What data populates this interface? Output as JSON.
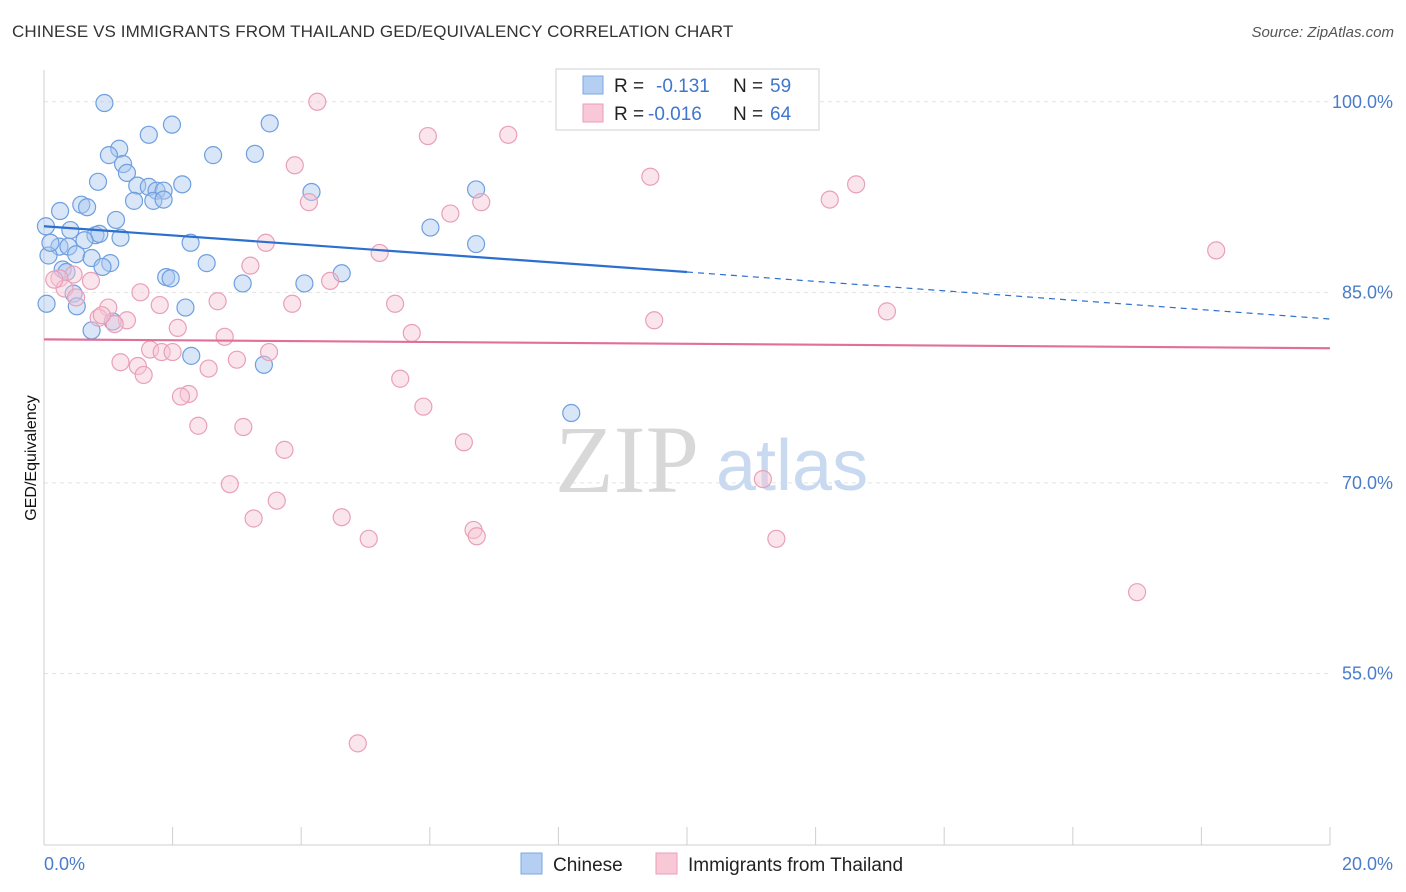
{
  "title": "CHINESE VS IMMIGRANTS FROM THAILAND GED/EQUIVALENCY CORRELATION CHART",
  "source": "Source: ZipAtlas.com",
  "watermark": {
    "zip": "ZIP",
    "atlas": "atlas"
  },
  "chart_data": {
    "type": "scatter",
    "ylabel": "GED/Equivalency",
    "xlim": [
      0,
      20
    ],
    "ylim": [
      41.5,
      102.5
    ],
    "x_tick_labels": [
      {
        "value": 0,
        "label": "0.0%"
      },
      {
        "value": 20,
        "label": "20.0%"
      }
    ],
    "y_tick_labels": [
      {
        "value": 100,
        "label": "100.0%"
      },
      {
        "value": 85,
        "label": "85.0%"
      },
      {
        "value": 70,
        "label": "70.0%"
      },
      {
        "value": 55,
        "label": "55.0%"
      }
    ],
    "legend": [
      {
        "r_label": "R =",
        "r_value": "-0.131",
        "n_label": "N =",
        "n_value": "59"
      },
      {
        "r_label": "R =",
        "r_value": "-0.016",
        "n_label": "N =",
        "n_value": "64"
      }
    ],
    "series": [
      {
        "name": "Chinese",
        "color": "#6f9fdf",
        "fill": "#a9c8f0",
        "trend": {
          "x": [
            0,
            10
          ],
          "y": [
            90.2,
            86.6
          ],
          "dashed_to_x": 20,
          "dashed_to_y": 82.9,
          "color": "#2c6fcf"
        },
        "points": [
          [
            0.94,
            99.9
          ],
          [
            1.99,
            98.2
          ],
          [
            3.51,
            98.3
          ],
          [
            1.63,
            97.4
          ],
          [
            1.17,
            96.3
          ],
          [
            1.01,
            95.8
          ],
          [
            2.63,
            95.8
          ],
          [
            3.28,
            95.9
          ],
          [
            1.23,
            95.1
          ],
          [
            1.29,
            94.4
          ],
          [
            0.84,
            93.7
          ],
          [
            1.45,
            93.4
          ],
          [
            1.63,
            93.3
          ],
          [
            2.15,
            93.5
          ],
          [
            1.75,
            93.0
          ],
          [
            1.86,
            93.0
          ],
          [
            4.16,
            92.9
          ],
          [
            6.72,
            93.1
          ],
          [
            1.4,
            92.2
          ],
          [
            1.7,
            92.2
          ],
          [
            1.86,
            92.3
          ],
          [
            0.58,
            91.9
          ],
          [
            0.67,
            91.7
          ],
          [
            0.25,
            91.4
          ],
          [
            1.12,
            90.7
          ],
          [
            0.03,
            90.2
          ],
          [
            0.41,
            89.9
          ],
          [
            0.8,
            89.5
          ],
          [
            0.86,
            89.6
          ],
          [
            1.19,
            89.3
          ],
          [
            0.63,
            89.1
          ],
          [
            6.01,
            90.1
          ],
          [
            2.28,
            88.9
          ],
          [
            0.24,
            88.6
          ],
          [
            0.38,
            88.6
          ],
          [
            0.5,
            88.0
          ],
          [
            0.74,
            87.7
          ],
          [
            0.07,
            87.9
          ],
          [
            1.03,
            87.3
          ],
          [
            2.53,
            87.3
          ],
          [
            0.29,
            86.8
          ],
          [
            0.91,
            87.0
          ],
          [
            0.35,
            86.6
          ],
          [
            1.9,
            86.2
          ],
          [
            1.97,
            86.1
          ],
          [
            3.09,
            85.7
          ],
          [
            4.05,
            85.7
          ],
          [
            4.63,
            86.5
          ],
          [
            0.46,
            84.9
          ],
          [
            0.04,
            84.1
          ],
          [
            0.51,
            83.9
          ],
          [
            2.2,
            83.8
          ],
          [
            1.07,
            82.7
          ],
          [
            0.74,
            82.0
          ],
          [
            2.29,
            80.0
          ],
          [
            3.42,
            79.3
          ],
          [
            8.2,
            75.5
          ],
          [
            6.72,
            88.8
          ],
          [
            0.1,
            88.9
          ]
        ]
      },
      {
        "name": "Immigrants from Thailand",
        "color": "#e8a0b8",
        "fill": "#f7c5d5",
        "trend": {
          "x": [
            0,
            20
          ],
          "y": [
            81.3,
            80.6
          ],
          "color": "#e0709a"
        },
        "points": [
          [
            4.25,
            100.0
          ],
          [
            5.97,
            97.3
          ],
          [
            7.22,
            97.4
          ],
          [
            3.9,
            95.0
          ],
          [
            9.43,
            94.1
          ],
          [
            12.63,
            93.5
          ],
          [
            4.12,
            92.1
          ],
          [
            6.8,
            92.1
          ],
          [
            12.22,
            92.3
          ],
          [
            6.32,
            91.2
          ],
          [
            3.45,
            88.9
          ],
          [
            5.22,
            88.1
          ],
          [
            18.23,
            88.3
          ],
          [
            3.21,
            87.1
          ],
          [
            0.46,
            86.4
          ],
          [
            0.73,
            85.9
          ],
          [
            4.45,
            85.9
          ],
          [
            0.24,
            86.1
          ],
          [
            0.32,
            85.3
          ],
          [
            0.5,
            84.6
          ],
          [
            1.0,
            83.8
          ],
          [
            1.8,
            84.0
          ],
          [
            2.7,
            84.3
          ],
          [
            3.86,
            84.1
          ],
          [
            5.46,
            84.1
          ],
          [
            13.11,
            83.5
          ],
          [
            0.85,
            83.0
          ],
          [
            1.29,
            82.8
          ],
          [
            1.1,
            82.5
          ],
          [
            2.08,
            82.2
          ],
          [
            9.49,
            82.8
          ],
          [
            5.72,
            81.8
          ],
          [
            2.81,
            81.5
          ],
          [
            1.65,
            80.5
          ],
          [
            1.83,
            80.3
          ],
          [
            2.0,
            80.3
          ],
          [
            3.5,
            80.3
          ],
          [
            1.19,
            79.5
          ],
          [
            1.46,
            79.2
          ],
          [
            2.56,
            79.0
          ],
          [
            3.0,
            79.7
          ],
          [
            1.55,
            78.5
          ],
          [
            5.54,
            78.2
          ],
          [
            2.25,
            77.0
          ],
          [
            2.13,
            76.8
          ],
          [
            5.9,
            76.0
          ],
          [
            2.4,
            74.5
          ],
          [
            3.1,
            74.4
          ],
          [
            6.53,
            73.2
          ],
          [
            3.74,
            72.6
          ],
          [
            11.18,
            70.3
          ],
          [
            2.89,
            69.9
          ],
          [
            3.62,
            68.6
          ],
          [
            3.26,
            67.2
          ],
          [
            4.63,
            67.3
          ],
          [
            6.68,
            66.3
          ],
          [
            6.73,
            65.8
          ],
          [
            5.05,
            65.6
          ],
          [
            11.39,
            65.6
          ],
          [
            17.0,
            61.4
          ],
          [
            4.88,
            49.5
          ],
          [
            0.16,
            86.0
          ],
          [
            0.9,
            83.2
          ],
          [
            1.5,
            85.0
          ]
        ]
      }
    ],
    "bottom_legend_placement": "bottom-center",
    "stats_legend_placement": "top-center",
    "grid": true
  }
}
